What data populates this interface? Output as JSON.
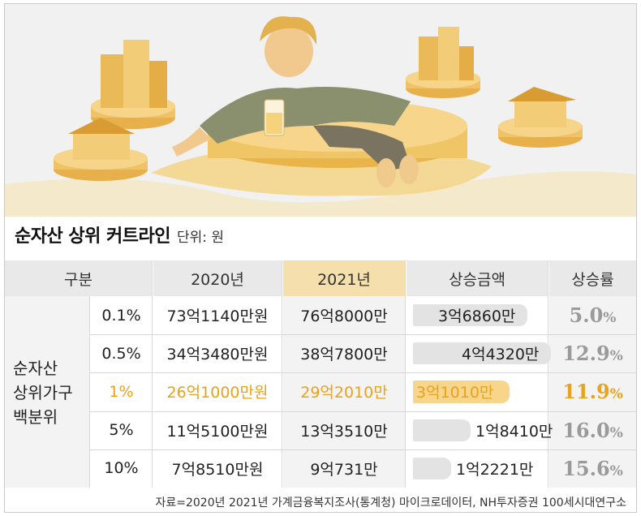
{
  "title": "순자산 상위 커트라인",
  "unit": "단위: 원",
  "source": "자료=2020년 2021년 가계금융복지조사(통계청) 마이크로데이터, NH투자증권 100세시대연구소",
  "colors": {
    "accent": "#e8a21b",
    "bar_gray": "#e3e3e3",
    "bar_highlight": "#f7d58a",
    "rate_gray": "#9a9a9a"
  },
  "chart_data": {
    "type": "table",
    "headers": [
      "구분",
      "2020년",
      "2021년",
      "상승금액",
      "상승률"
    ],
    "group_label": [
      "순자산",
      "상위가구",
      "백분위"
    ],
    "highlight_row": 2,
    "rows": [
      {
        "percentile": "0.1%",
        "y2020": "73억1140만원",
        "y2021": "76억8000만",
        "increase": "3억6860만",
        "increase_value": 36860,
        "rate_num": "5.0",
        "rate_unit": "%"
      },
      {
        "percentile": "0.5%",
        "y2020": "34억3480만원",
        "y2021": "38억7800만",
        "increase": "4억4320만",
        "increase_value": 44320,
        "rate_num": "12.9",
        "rate_unit": "%"
      },
      {
        "percentile": "1%",
        "y2020": "26억1000만원",
        "y2021": "29억2010만",
        "increase": "3억1010만",
        "increase_value": 31010,
        "rate_num": "11.9",
        "rate_unit": "%"
      },
      {
        "percentile": "5%",
        "y2020": "11억5100만원",
        "y2021": "13억3510만",
        "increase": "1억8410만",
        "increase_value": 18410,
        "rate_num": "16.0",
        "rate_unit": "%"
      },
      {
        "percentile": "10%",
        "y2020": "7억8510만원",
        "y2021": "9억731만",
        "increase": "1억2221만",
        "increase_value": 12221,
        "rate_num": "15.6",
        "rate_unit": "%"
      }
    ]
  }
}
